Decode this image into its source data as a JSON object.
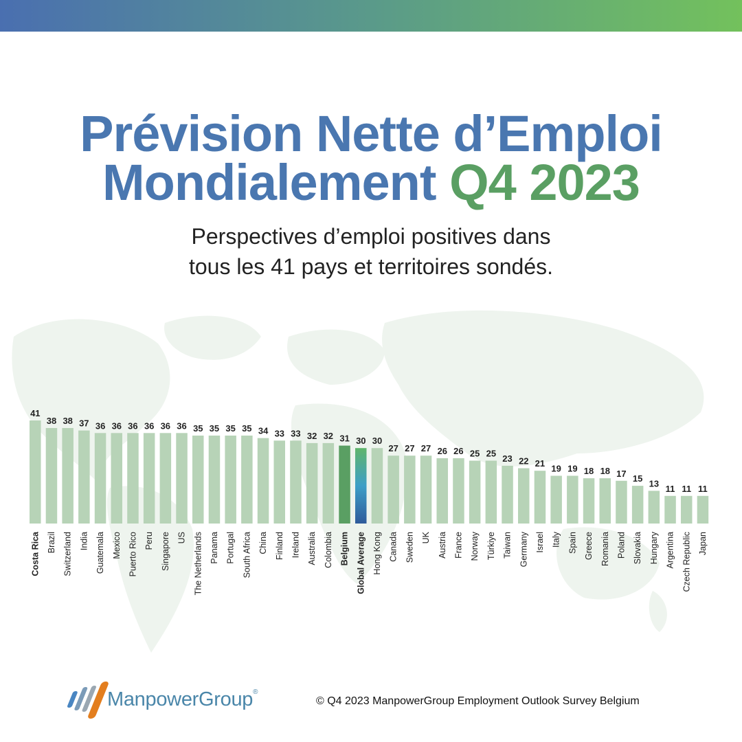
{
  "title": {
    "line1": "Prévision Nette d’Emploi",
    "line2_a": "Mondialement",
    "line2_b": "Q4 2023"
  },
  "subtitle": {
    "line1": "Perspectives d’emploi positives dans",
    "line2": "tous les 41 pays et territoires sondés."
  },
  "colors": {
    "title_blue": "#4a77b0",
    "title_green": "#5a9f63",
    "bar": "#b7d3b7",
    "highlight_bar": "#5a9f63",
    "average_gradient_top": "#5fb56b",
    "average_gradient_mid": "#3d9fc7",
    "average_gradient_bottom": "#2f5b9b",
    "top_band_left": "#4a6fb0",
    "top_band_right": "#73c15c"
  },
  "chart_data": {
    "type": "bar",
    "ylim": [
      0,
      41
    ],
    "grid": false,
    "categories": [
      "Costa Rica",
      "Brazil",
      "Switzerland",
      "India",
      "Guatemala",
      "Mexico",
      "Puerto Rico",
      "Peru",
      "Singapore",
      "US",
      "The Netherlands",
      "Panama",
      "Portugal",
      "South Africa",
      "China",
      "Finland",
      "Ireland",
      "Australia",
      "Colombia",
      "Belgium",
      "Global Average",
      "Hong Kong",
      "Canada",
      "Sweden",
      "UK",
      "Austria",
      "France",
      "Norway",
      "Türkiye",
      "Taiwan",
      "Germany",
      "Israel",
      "Italy",
      "Spain",
      "Greece",
      "Romania",
      "Poland",
      "Slovakia",
      "Hungary",
      "Argentina",
      "Czech Republic",
      "Japan"
    ],
    "values": [
      41,
      38,
      38,
      37,
      36,
      36,
      36,
      36,
      36,
      36,
      35,
      35,
      35,
      35,
      34,
      33,
      33,
      32,
      32,
      31,
      30,
      30,
      27,
      27,
      27,
      26,
      26,
      25,
      25,
      23,
      22,
      21,
      19,
      19,
      18,
      18,
      17,
      15,
      13,
      11,
      11,
      11
    ],
    "bold_categories": [
      "Costa Rica",
      "Belgium",
      "Global Average"
    ],
    "highlight": {
      "Belgium": "green",
      "Global Average": "gradient"
    }
  },
  "logo": {
    "name": "ManpowerGroup",
    "reg": "®"
  },
  "footer": "© Q4 2023 ManpowerGroup Employment Outlook Survey Belgium"
}
